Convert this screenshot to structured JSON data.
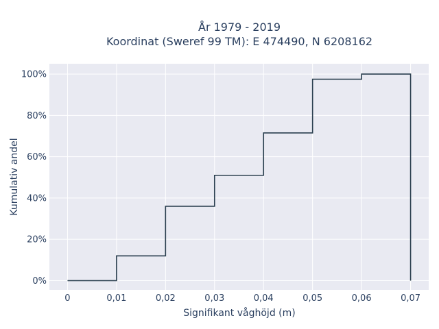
{
  "chart_data": {
    "type": "line",
    "line_shape": "step-cumulative",
    "title_line1": "År 1979 - 2019",
    "title_line2": "Koordinat (Sweref 99 TM): E 474490, N 6208162",
    "xlabel": "Signifikant våghöjd (m)",
    "ylabel": "Kumulativ andel",
    "xlim": [
      -0.0037,
      0.0737
    ],
    "ylim": [
      -0.045,
      1.05
    ],
    "x_ticks": [
      0,
      0.01,
      0.02,
      0.03,
      0.04,
      0.05,
      0.06,
      0.07
    ],
    "x_tick_labels": [
      "0",
      "0,01",
      "0,02",
      "0,03",
      "0,04",
      "0,05",
      "0,06",
      "0,07"
    ],
    "y_ticks": [
      0,
      0.2,
      0.4,
      0.6,
      0.8,
      1.0
    ],
    "y_tick_labels": [
      "0%",
      "20%",
      "40%",
      "60%",
      "80%",
      "100%"
    ],
    "grid": true,
    "legend": "none",
    "colors": {
      "line": "#2a3f4f",
      "plot_bg": "#e9eaf2",
      "grid": "#ffffff",
      "text": "#2a3f5f"
    },
    "series": [
      {
        "x": [
          0,
          0.01,
          0.02,
          0.03,
          0.04,
          0.05,
          0.06,
          0.07
        ],
        "y": [
          0.0,
          0.12,
          0.36,
          0.51,
          0.715,
          0.975,
          1.0,
          1.0
        ]
      }
    ]
  }
}
